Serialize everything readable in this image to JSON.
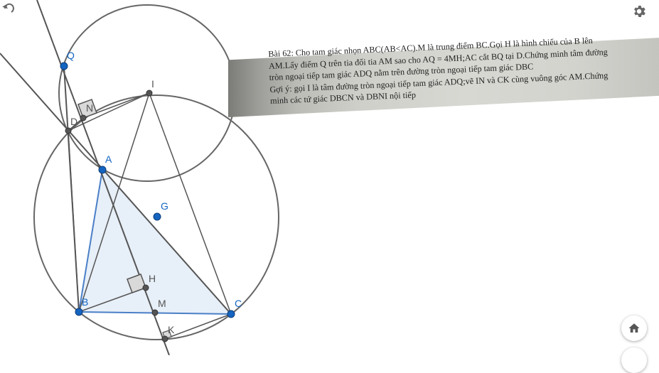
{
  "toolbar": {
    "undo_icon": "undo-icon",
    "settings_icon": "gear-icon",
    "home_icon": "home-icon"
  },
  "colors": {
    "point_blue": "#1565c0",
    "point_gray": "#444444",
    "line_gray": "#666666",
    "triangle_fill": "#dfe9f5",
    "triangle_stroke": "#4a7fc7"
  },
  "points": {
    "Q": "Q",
    "I": "I",
    "N": "N",
    "D": "D",
    "A": "A",
    "G": "G",
    "H": "H",
    "B": "B",
    "M": "M",
    "C": "C",
    "K": "K"
  },
  "problem": {
    "line1": "Bài 62: Cho tam giác nhọn ABC(AB<AC).M là trung điểm BC.Gọi H là hình chiếu của B lên",
    "line2": "AM.Lấy điểm Q trên tia đối tia AM sao cho AQ = 4MH;AC cắt BQ tại D.Chứng minh tâm đường",
    "line3": "tròn ngoại tiếp tam giác ADQ nằm trên đường tròn ngoại tiếp tam giác DBC",
    "line4": "Gợi ý: gọi I là tâm đường tròn ngoại tiếp tam giác ADQ;vẽ IN và CK cùng vuông góc AM.Chứng",
    "line5": "minh các tứ giác DBCN và DBNI nội tiếp"
  }
}
